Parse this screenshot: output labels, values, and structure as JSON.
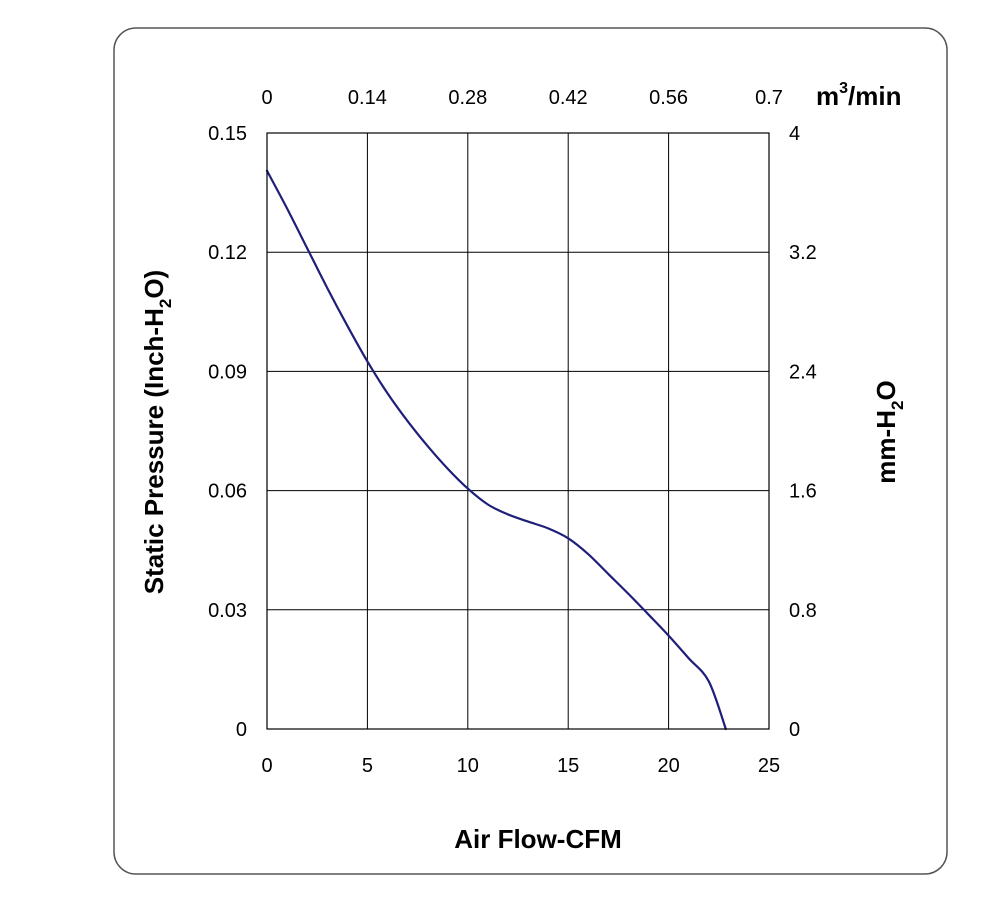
{
  "chart_data": {
    "type": "line",
    "title": "",
    "xlabel": "Air Flow-CFM",
    "ylabel_parts": [
      "Static Pressure (Inch-H",
      "2",
      "O)"
    ],
    "x2label_parts": [
      "m",
      "3",
      "/min"
    ],
    "y2label_parts": [
      "mm-H",
      "2",
      "O"
    ],
    "xlim": [
      0,
      25
    ],
    "ylim": [
      0,
      0.15
    ],
    "x2lim": [
      0,
      0.7
    ],
    "y2lim": [
      0,
      4
    ],
    "x_ticks": [
      "0",
      "5",
      "10",
      "15",
      "20",
      "25"
    ],
    "y_ticks": [
      "0",
      "0.03",
      "0.06",
      "0.09",
      "0.12",
      "0.15"
    ],
    "x2_ticks": [
      "0",
      "0.14",
      "0.28",
      "0.42",
      "0.56",
      "0.7"
    ],
    "y2_ticks": [
      "0",
      "0.8",
      "1.6",
      "2.4",
      "3.2",
      "4"
    ],
    "grid": true,
    "series": [
      {
        "color": "#1f1f7a",
        "x": [
          0,
          1,
          2,
          3,
          4,
          5,
          6,
          7,
          8,
          9,
          10,
          11,
          12,
          13,
          14,
          15,
          16,
          17,
          18,
          19,
          20,
          21,
          22,
          22.85
        ],
        "y": [
          0.1405,
          0.131,
          0.121,
          0.111,
          0.1015,
          0.0925,
          0.0845,
          0.0775,
          0.0712,
          0.0655,
          0.0605,
          0.0565,
          0.054,
          0.0522,
          0.0505,
          0.048,
          0.044,
          0.039,
          0.034,
          0.0288,
          0.0235,
          0.0178,
          0.012,
          0.0
        ]
      }
    ]
  },
  "frame": {
    "border_color": "#555555"
  }
}
